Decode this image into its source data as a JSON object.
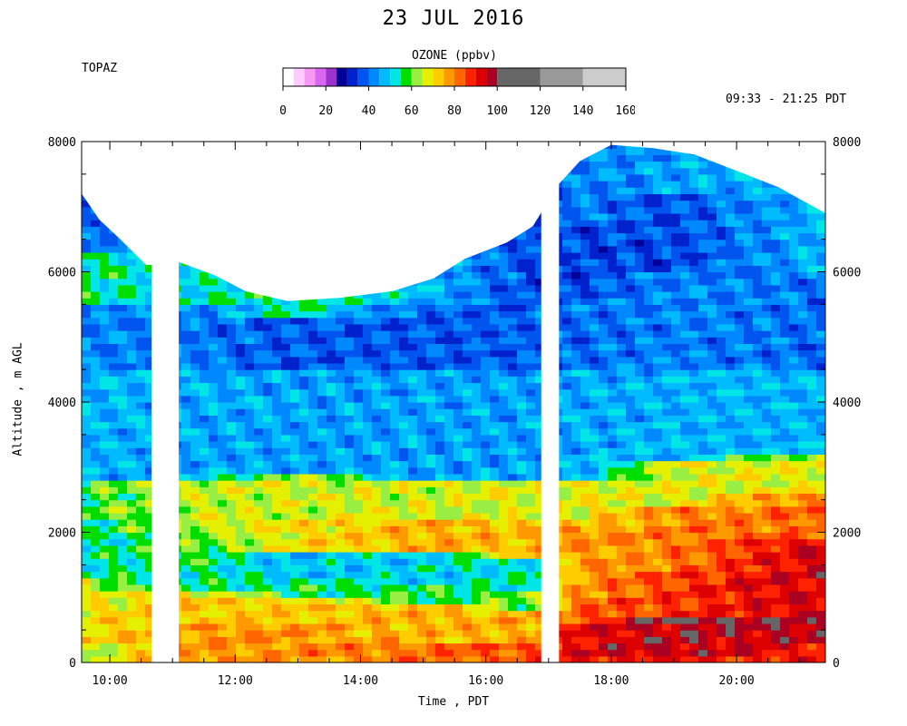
{
  "header": {
    "title": "23 JUL 2016",
    "station": "TOPAZ",
    "time_range": "09:33 - 21:25 PDT"
  },
  "colorbar": {
    "title": "OZONE (ppbv)",
    "ticks": [
      "0",
      "20",
      "40",
      "60",
      "80",
      "100",
      "120",
      "140",
      "160"
    ],
    "bins": [
      {
        "from": 0,
        "to": 5,
        "color": "#ffffff"
      },
      {
        "from": 5,
        "to": 10,
        "color": "#ffccff"
      },
      {
        "from": 10,
        "to": 15,
        "color": "#f599f5"
      },
      {
        "from": 15,
        "to": 20,
        "color": "#d966ee"
      },
      {
        "from": 20,
        "to": 25,
        "color": "#9933cc"
      },
      {
        "from": 25,
        "to": 30,
        "color": "#000099"
      },
      {
        "from": 30,
        "to": 35,
        "color": "#0022cc"
      },
      {
        "from": 35,
        "to": 40,
        "color": "#0055ee"
      },
      {
        "from": 40,
        "to": 45,
        "color": "#0088ff"
      },
      {
        "from": 45,
        "to": 50,
        "color": "#00bbff"
      },
      {
        "from": 50,
        "to": 55,
        "color": "#00e5e5"
      },
      {
        "from": 55,
        "to": 60,
        "color": "#00dd00"
      },
      {
        "from": 60,
        "to": 65,
        "color": "#99ee44"
      },
      {
        "from": 65,
        "to": 70,
        "color": "#e5f000"
      },
      {
        "from": 70,
        "to": 75,
        "color": "#ffcc00"
      },
      {
        "from": 75,
        "to": 80,
        "color": "#ff9900"
      },
      {
        "from": 80,
        "to": 85,
        "color": "#ff6600"
      },
      {
        "from": 85,
        "to": 90,
        "color": "#ff2200"
      },
      {
        "from": 90,
        "to": 95,
        "color": "#dd0000"
      },
      {
        "from": 95,
        "to": 100,
        "color": "#aa0022"
      },
      {
        "from": 100,
        "to": 120,
        "color": "#666666"
      },
      {
        "from": 120,
        "to": 140,
        "color": "#999999"
      },
      {
        "from": 140,
        "to": 160,
        "color": "#cccccc"
      }
    ]
  },
  "chart_data": {
    "type": "heatmap",
    "xlabel": "Time , PDT",
    "ylabel": "Altitude , m AGL",
    "x_range": [
      "09:33",
      "21:25"
    ],
    "ylim": [
      0,
      8000
    ],
    "x_ticks": [
      "10:00",
      "12:00",
      "14:00",
      "16:00",
      "18:00",
      "20:00"
    ],
    "y_ticks": [
      "0",
      "2000",
      "4000",
      "6000",
      "8000"
    ],
    "y_ticks_right": [
      "0",
      "2000",
      "4000",
      "6000",
      "8000"
    ],
    "colorbar_units": "ppbv",
    "data_gaps": [
      [
        "10:40",
        "11:06"
      ],
      [
        "16:53",
        "17:10"
      ]
    ],
    "profile_top_altitude": [
      {
        "time": "09:33",
        "alt": 7200
      },
      {
        "time": "09:50",
        "alt": 6800
      },
      {
        "time": "10:10",
        "alt": 6500
      },
      {
        "time": "10:35",
        "alt": 6100
      },
      {
        "time": "11:06",
        "alt": 6150
      },
      {
        "time": "11:40",
        "alt": 5950
      },
      {
        "time": "12:10",
        "alt": 5700
      },
      {
        "time": "12:50",
        "alt": 5550
      },
      {
        "time": "13:40",
        "alt": 5600
      },
      {
        "time": "14:30",
        "alt": 5700
      },
      {
        "time": "15:10",
        "alt": 5900
      },
      {
        "time": "15:40",
        "alt": 6200
      },
      {
        "time": "16:20",
        "alt": 6450
      },
      {
        "time": "16:45",
        "alt": 6700
      },
      {
        "time": "17:10",
        "alt": 7350
      },
      {
        "time": "17:30",
        "alt": 7700
      },
      {
        "time": "18:00",
        "alt": 7950
      },
      {
        "time": "18:40",
        "alt": 7900
      },
      {
        "time": "19:20",
        "alt": 7800
      },
      {
        "time": "20:00",
        "alt": 7550
      },
      {
        "time": "20:40",
        "alt": 7300
      },
      {
        "time": "21:25",
        "alt": 6900
      }
    ],
    "profiles": [
      {
        "time": "09:33",
        "layers": [
          [
            0,
            300,
            62
          ],
          [
            300,
            900,
            70
          ],
          [
            900,
            1300,
            65
          ],
          [
            1300,
            2200,
            53
          ],
          [
            2200,
            2800,
            57
          ],
          [
            2800,
            4500,
            47
          ],
          [
            4500,
            5500,
            42
          ],
          [
            5500,
            6300,
            55
          ],
          [
            6300,
            7200,
            38
          ]
        ]
      },
      {
        "time": "11:06",
        "layers": [
          [
            0,
            600,
            78
          ],
          [
            600,
            1100,
            72
          ],
          [
            1100,
            1400,
            55
          ],
          [
            1400,
            2000,
            58
          ],
          [
            2000,
            2800,
            65
          ],
          [
            2800,
            4500,
            46
          ],
          [
            4500,
            5500,
            41
          ],
          [
            5500,
            6100,
            52
          ]
        ]
      },
      {
        "time": "13:00",
        "layers": [
          [
            0,
            600,
            78
          ],
          [
            600,
            1000,
            72
          ],
          [
            1000,
            1300,
            55
          ],
          [
            1300,
            1700,
            48
          ],
          [
            1700,
            2200,
            70
          ],
          [
            2200,
            2900,
            66
          ],
          [
            2900,
            4500,
            45
          ],
          [
            4500,
            5300,
            38
          ],
          [
            5300,
            5600,
            55
          ]
        ]
      },
      {
        "time": "15:00",
        "layers": [
          [
            0,
            300,
            82
          ],
          [
            300,
            900,
            74
          ],
          [
            900,
            1200,
            57
          ],
          [
            1200,
            1700,
            50
          ],
          [
            1700,
            2200,
            75
          ],
          [
            2200,
            2800,
            66
          ],
          [
            2800,
            4500,
            45
          ],
          [
            4500,
            5500,
            38
          ],
          [
            5500,
            6000,
            48
          ]
        ]
      },
      {
        "time": "16:45",
        "layers": [
          [
            0,
            300,
            84
          ],
          [
            300,
            800,
            76
          ],
          [
            800,
            1100,
            60
          ],
          [
            1100,
            1600,
            53
          ],
          [
            1600,
            2200,
            74
          ],
          [
            2200,
            2800,
            66
          ],
          [
            2800,
            4500,
            45
          ],
          [
            4500,
            5500,
            38
          ],
          [
            5500,
            6700,
            36
          ]
        ]
      },
      {
        "time": "17:30",
        "layers": [
          [
            0,
            600,
            92
          ],
          [
            600,
            1000,
            83
          ],
          [
            1000,
            2100,
            78
          ],
          [
            2100,
            2800,
            68
          ],
          [
            2800,
            4500,
            46
          ],
          [
            4500,
            5600,
            40
          ],
          [
            5600,
            6800,
            36
          ],
          [
            6800,
            7700,
            42
          ]
        ]
      },
      {
        "time": "19:00",
        "layers": [
          [
            0,
            150,
            88
          ],
          [
            150,
            550,
            96
          ],
          [
            550,
            700,
            103
          ],
          [
            700,
            1400,
            86
          ],
          [
            1400,
            2400,
            80
          ],
          [
            2400,
            3100,
            67
          ],
          [
            3100,
            4500,
            47
          ],
          [
            4500,
            6000,
            42
          ],
          [
            6000,
            7200,
            36
          ],
          [
            7200,
            7900,
            45
          ]
        ]
      },
      {
        "time": "21:25",
        "layers": [
          [
            0,
            300,
            90
          ],
          [
            300,
            1900,
            95
          ],
          [
            1900,
            2600,
            82
          ],
          [
            2600,
            3200,
            68
          ],
          [
            3200,
            4500,
            47
          ],
          [
            4500,
            6000,
            40
          ],
          [
            6000,
            6900,
            48
          ]
        ]
      }
    ]
  }
}
